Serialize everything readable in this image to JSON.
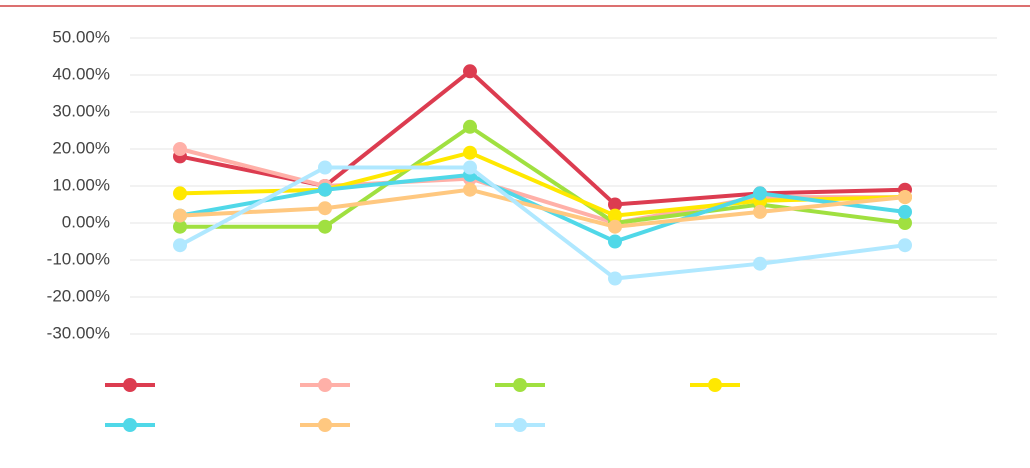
{
  "chart_data": {
    "type": "line",
    "categories": [
      null,
      null,
      null,
      null,
      null,
      null
    ],
    "series": [
      {
        "color": "#dc3c50",
        "values": [
          18,
          10,
          41,
          5,
          8,
          9
        ]
      },
      {
        "color": "#ffb0a8",
        "values": [
          20,
          10,
          12,
          0,
          7,
          7
        ]
      },
      {
        "color": "#a0e040",
        "values": [
          -1,
          -1,
          26,
          0,
          5,
          0
        ]
      },
      {
        "color": "#ffe800",
        "values": [
          8,
          9,
          19,
          2,
          6,
          7
        ]
      },
      {
        "color": "#50d8e8",
        "values": [
          2,
          9,
          13,
          -5,
          8,
          3
        ]
      },
      {
        "color": "#ffc880",
        "values": [
          2,
          4,
          9,
          -1,
          3,
          7
        ]
      },
      {
        "color": "#b0e8ff",
        "values": [
          -6,
          15,
          15,
          -15,
          -11,
          -6
        ]
      }
    ],
    "ylim": [
      -30,
      50
    ],
    "yticks": [
      {
        "value": 50,
        "label": "50.00%"
      },
      {
        "value": 40,
        "label": "40.00%"
      },
      {
        "value": 30,
        "label": "30.00%"
      },
      {
        "value": 20,
        "label": "20.00%"
      },
      {
        "value": 10,
        "label": "10.00%"
      },
      {
        "value": 0,
        "label": "0.00%"
      },
      {
        "value": -10,
        "label": "-10.00%"
      },
      {
        "value": -20,
        "label": "-20.00%"
      },
      {
        "value": -30,
        "label": "-30.00%"
      }
    ],
    "grid": true
  }
}
